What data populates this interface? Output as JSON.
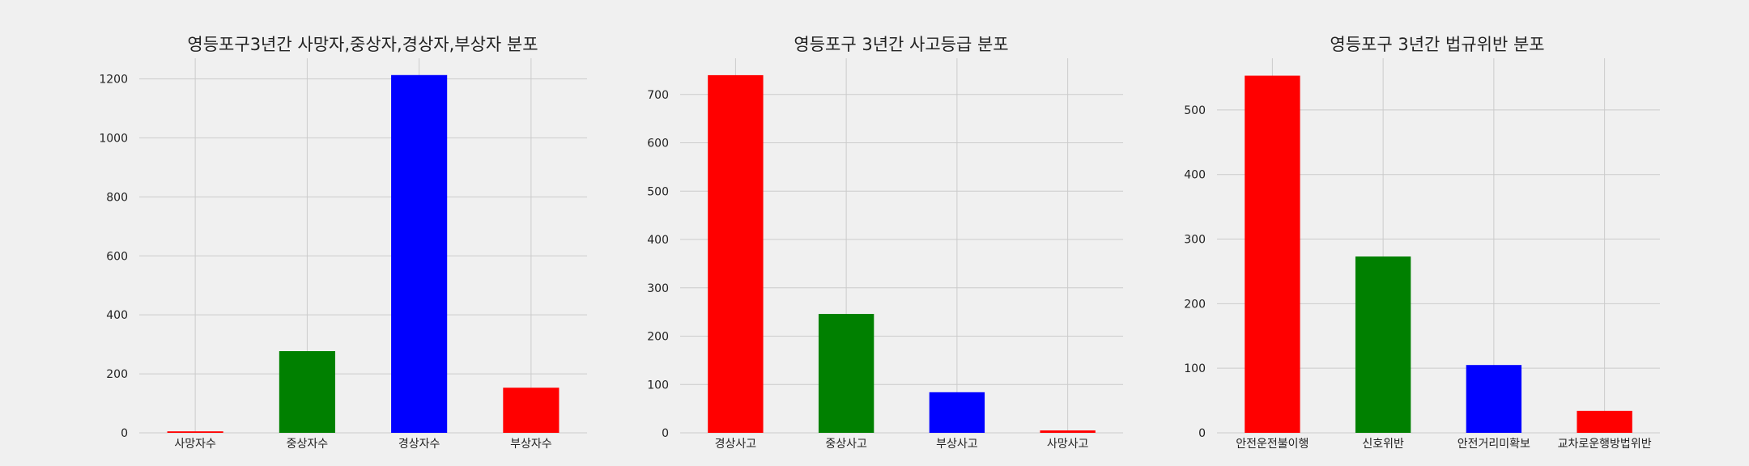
{
  "chart_data": [
    {
      "type": "bar",
      "title": "영등포구3년간 사망자,중상자,경상자,부상자 분포",
      "categories": [
        "사망자수",
        "중상자수",
        "경상자수",
        "부상자수"
      ],
      "values": [
        5,
        277,
        1213,
        153
      ],
      "colors": [
        "#ff0000",
        "#008000",
        "#0000ff",
        "#ff0000"
      ],
      "ylim": [
        0,
        1270
      ],
      "yticks": [
        0,
        200,
        400,
        600,
        800,
        1000,
        1200
      ],
      "xlabel": "",
      "ylabel": "",
      "grid": true
    },
    {
      "type": "bar",
      "title": "영등포구 3년간 사고등급 분포",
      "categories": [
        "경상사고",
        "중상사고",
        "부상사고",
        "사망사고"
      ],
      "values": [
        740,
        246,
        84,
        5
      ],
      "colors": [
        "#ff0000",
        "#008000",
        "#0000ff",
        "#ff0000"
      ],
      "ylim": [
        0,
        775
      ],
      "yticks": [
        0,
        100,
        200,
        300,
        400,
        500,
        600,
        700
      ],
      "xlabel": "",
      "ylabel": "",
      "grid": true
    },
    {
      "type": "bar",
      "title": "영등포구 3년간 법규위반 분포",
      "categories": [
        "안전운전불이행",
        "신호위반",
        "안전거리미확보",
        "교차로운행방법위반"
      ],
      "values": [
        553,
        273,
        105,
        34
      ],
      "colors": [
        "#ff0000",
        "#008000",
        "#0000ff",
        "#ff0000"
      ],
      "ylim": [
        0,
        580
      ],
      "yticks": [
        0,
        100,
        200,
        300,
        400,
        500
      ],
      "xlabel": "",
      "ylabel": "",
      "grid": true
    }
  ]
}
